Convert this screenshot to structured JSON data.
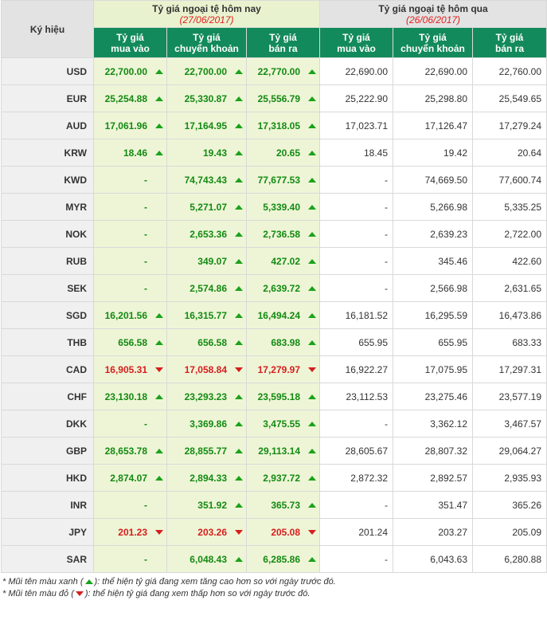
{
  "header": {
    "symbol_label": "Ký hiệu",
    "today_title": "Tỷ giá ngoại tệ hôm nay",
    "today_date": "(27/06/2017)",
    "yesterday_title": "Tỷ giá ngoại tệ hôm qua",
    "yesterday_date": "(26/06/2017)",
    "buy_label_1": "Tỷ giá",
    "buy_label_2": "mua vào",
    "transfer_label_1": "Tỷ giá",
    "transfer_label_2": "chuyển khoản",
    "sell_label_1": "Tỷ giá",
    "sell_label_2": "bán ra"
  },
  "colors": {
    "up": "#1aa31a",
    "down": "#d61e1e",
    "header_green": "#138a5b",
    "today_bg": "#eef5d6"
  },
  "rows": [
    {
      "sym": "USD",
      "tb": "22,700.00",
      "tba": "up",
      "tt": "22,700.00",
      "tta": "up",
      "ts": "22,770.00",
      "tsa": "up",
      "yb": "22,690.00",
      "yt": "22,690.00",
      "ys": "22,760.00"
    },
    {
      "sym": "EUR",
      "tb": "25,254.88",
      "tba": "up",
      "tt": "25,330.87",
      "tta": "up",
      "ts": "25,556.79",
      "tsa": "up",
      "yb": "25,222.90",
      "yt": "25,298.80",
      "ys": "25,549.65"
    },
    {
      "sym": "AUD",
      "tb": "17,061.96",
      "tba": "up",
      "tt": "17,164.95",
      "tta": "up",
      "ts": "17,318.05",
      "tsa": "up",
      "yb": "17,023.71",
      "yt": "17,126.47",
      "ys": "17,279.24"
    },
    {
      "sym": "KRW",
      "tb": "18.46",
      "tba": "up",
      "tt": "19.43",
      "tta": "up",
      "ts": "20.65",
      "tsa": "up",
      "yb": "18.45",
      "yt": "19.42",
      "ys": "20.64"
    },
    {
      "sym": "KWD",
      "tb": "-",
      "tba": "none",
      "tt": "74,743.43",
      "tta": "up",
      "ts": "77,677.53",
      "tsa": "up",
      "yb": "-",
      "yt": "74,669.50",
      "ys": "77,600.74"
    },
    {
      "sym": "MYR",
      "tb": "-",
      "tba": "none",
      "tt": "5,271.07",
      "tta": "up",
      "ts": "5,339.40",
      "tsa": "up",
      "yb": "-",
      "yt": "5,266.98",
      "ys": "5,335.25"
    },
    {
      "sym": "NOK",
      "tb": "-",
      "tba": "none",
      "tt": "2,653.36",
      "tta": "up",
      "ts": "2,736.58",
      "tsa": "up",
      "yb": "-",
      "yt": "2,639.23",
      "ys": "2,722.00"
    },
    {
      "sym": "RUB",
      "tb": "-",
      "tba": "none",
      "tt": "349.07",
      "tta": "up",
      "ts": "427.02",
      "tsa": "up",
      "yb": "-",
      "yt": "345.46",
      "ys": "422.60"
    },
    {
      "sym": "SEK",
      "tb": "-",
      "tba": "none",
      "tt": "2,574.86",
      "tta": "up",
      "ts": "2,639.72",
      "tsa": "up",
      "yb": "-",
      "yt": "2,566.98",
      "ys": "2,631.65"
    },
    {
      "sym": "SGD",
      "tb": "16,201.56",
      "tba": "up",
      "tt": "16,315.77",
      "tta": "up",
      "ts": "16,494.24",
      "tsa": "up",
      "yb": "16,181.52",
      "yt": "16,295.59",
      "ys": "16,473.86"
    },
    {
      "sym": "THB",
      "tb": "656.58",
      "tba": "up",
      "tt": "656.58",
      "tta": "up",
      "ts": "683.98",
      "tsa": "up",
      "yb": "655.95",
      "yt": "655.95",
      "ys": "683.33"
    },
    {
      "sym": "CAD",
      "tb": "16,905.31",
      "tba": "down",
      "tt": "17,058.84",
      "tta": "down",
      "ts": "17,279.97",
      "tsa": "down",
      "yb": "16,922.27",
      "yt": "17,075.95",
      "ys": "17,297.31"
    },
    {
      "sym": "CHF",
      "tb": "23,130.18",
      "tba": "up",
      "tt": "23,293.23",
      "tta": "up",
      "ts": "23,595.18",
      "tsa": "up",
      "yb": "23,112.53",
      "yt": "23,275.46",
      "ys": "23,577.19"
    },
    {
      "sym": "DKK",
      "tb": "-",
      "tba": "none",
      "tt": "3,369.86",
      "tta": "up",
      "ts": "3,475.55",
      "tsa": "up",
      "yb": "-",
      "yt": "3,362.12",
      "ys": "3,467.57"
    },
    {
      "sym": "GBP",
      "tb": "28,653.78",
      "tba": "up",
      "tt": "28,855.77",
      "tta": "up",
      "ts": "29,113.14",
      "tsa": "up",
      "yb": "28,605.67",
      "yt": "28,807.32",
      "ys": "29,064.27"
    },
    {
      "sym": "HKD",
      "tb": "2,874.07",
      "tba": "up",
      "tt": "2,894.33",
      "tta": "up",
      "ts": "2,937.72",
      "tsa": "up",
      "yb": "2,872.32",
      "yt": "2,892.57",
      "ys": "2,935.93"
    },
    {
      "sym": "INR",
      "tb": "-",
      "tba": "none",
      "tt": "351.92",
      "tta": "up",
      "ts": "365.73",
      "tsa": "up",
      "yb": "-",
      "yt": "351.47",
      "ys": "365.26"
    },
    {
      "sym": "JPY",
      "tb": "201.23",
      "tba": "down",
      "tt": "203.26",
      "tta": "down",
      "ts": "205.08",
      "tsa": "down",
      "yb": "201.24",
      "yt": "203.27",
      "ys": "205.09"
    },
    {
      "sym": "SAR",
      "tb": "-",
      "tba": "none",
      "tt": "6,048.43",
      "tta": "up",
      "ts": "6,285.86",
      "tsa": "up",
      "yb": "-",
      "yt": "6,043.63",
      "ys": "6,280.88"
    }
  ],
  "notes": {
    "green_prefix": "* Mũi tên màu xanh (",
    "green_suffix": "): thể hiện tỷ giá đang xem tăng cao hơn so với ngày trước đó.",
    "red_prefix": "* Mũi tên màu đỏ (",
    "red_suffix": "): thể hiện tỷ giá đang xem thấp hơn so với ngày trước đó."
  }
}
